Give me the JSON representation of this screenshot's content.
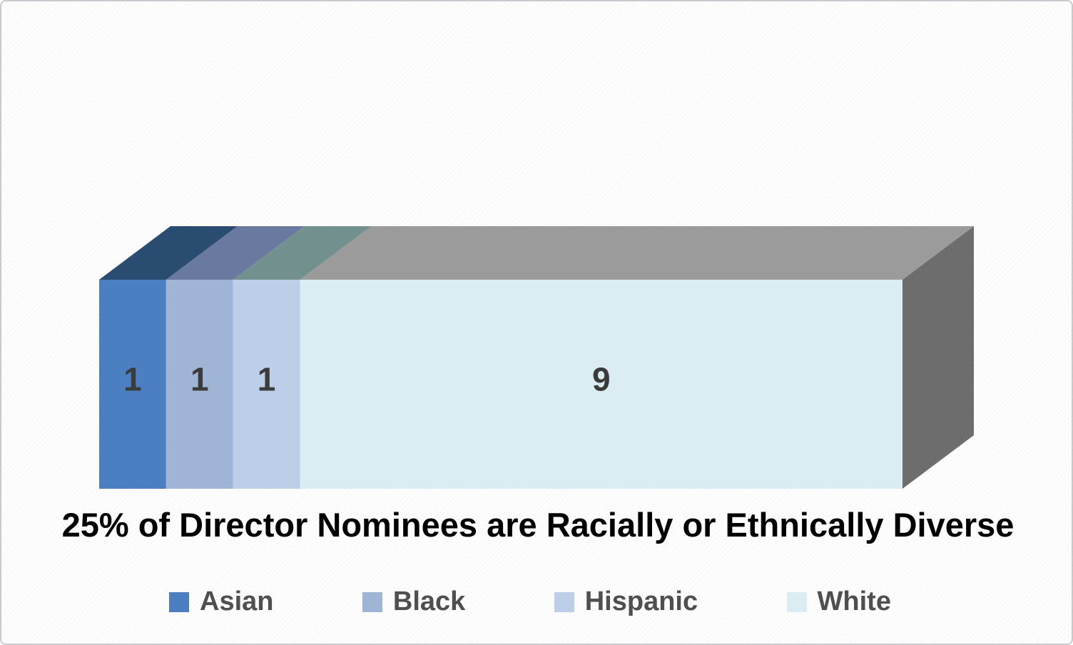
{
  "chart_data": {
    "type": "bar",
    "subtype": "stacked-horizontal-3d",
    "title": "25% of Director Nominees are Racially or Ethnically Diverse",
    "categories": [
      "Director Nominees"
    ],
    "series": [
      {
        "name": "Asian",
        "value": 1,
        "front_color": "#4c7ec2",
        "top_color": "#2b4c71"
      },
      {
        "name": "Black",
        "value": 1,
        "front_color": "#a0b5d6",
        "top_color": "#6a79a0"
      },
      {
        "name": "Hispanic",
        "value": 1,
        "front_color": "#bccee8",
        "top_color": "#72908e"
      },
      {
        "name": "White",
        "value": 9,
        "front_color": "#dbedf2",
        "top_color": "#9a9b9a"
      }
    ],
    "total": 12,
    "data_labels": [
      "1",
      "1",
      "1",
      "9"
    ],
    "side_face_color": "#6d6d6d",
    "data_label_color": "#3b3b3b",
    "legend_position": "bottom",
    "axes_visible": false,
    "gridlines": false
  },
  "legend": {
    "items": [
      {
        "label": "Asian",
        "color": "#4c7ec2"
      },
      {
        "label": "Black",
        "color": "#a0b5d6"
      },
      {
        "label": "Hispanic",
        "color": "#bccee8"
      },
      {
        "label": "White",
        "color": "#dbedf2"
      }
    ]
  }
}
